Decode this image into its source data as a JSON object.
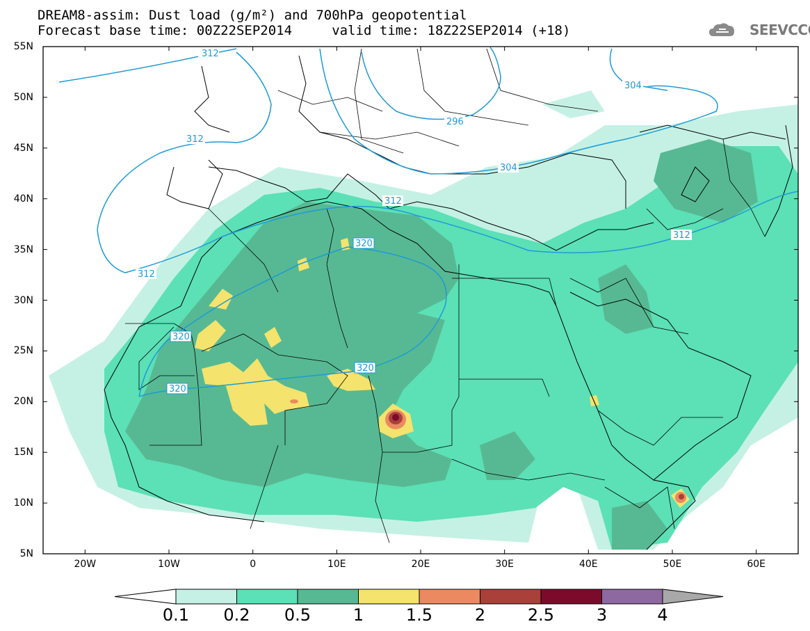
{
  "title": {
    "line1": "DREAM8-assim: Dust load (g/m²) and 700hPa geopotential",
    "line2": "Forecast base time: 00Z22SEP2014     valid time: 18Z22SEP2014 (+18)"
  },
  "logo": {
    "text": "SEEVCCC",
    "icon": "cloud-icon"
  },
  "map": {
    "lon_range": [
      -25,
      65
    ],
    "lat_range": [
      5,
      55
    ],
    "lat_ticks": [
      "55N",
      "50N",
      "45N",
      "40N",
      "35N",
      "30N",
      "25N",
      "20N",
      "15N",
      "10N",
      "5N"
    ],
    "lon_ticks": [
      "20W",
      "10W",
      "0",
      "10E",
      "20E",
      "30E",
      "40E",
      "50E",
      "60E"
    ],
    "contour_labels": [
      "312",
      "304",
      "296",
      "312",
      "304",
      "312",
      "320",
      "312",
      "320",
      "320",
      "320",
      "312"
    ]
  },
  "colorbar": {
    "labels": [
      "0.1",
      "0.2",
      "0.5",
      "1",
      "1.5",
      "2",
      "2.5",
      "3",
      "4"
    ],
    "colors": [
      "#c5f1e4",
      "#5ce0b6",
      "#57b993",
      "#f4e36d",
      "#eb8a61",
      "#a94039",
      "#7c0a2a",
      "#8e68a1"
    ],
    "over_color": "#a8a8a8",
    "under_color": "#ffffff"
  }
}
